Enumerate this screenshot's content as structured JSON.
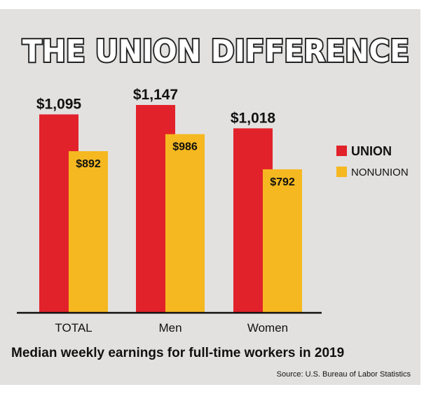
{
  "colors": {
    "union": "#e2222b",
    "nonunion": "#f5b820",
    "background": "#e2e1e0",
    "baseline": "#111111"
  },
  "chart_data": {
    "type": "bar",
    "title": "THE UNION DIFFERENCE",
    "subtitle": "Median weekly earnings for full-time workers in 2019",
    "source": "Source: U.S. Bureau of Labor Statistics",
    "categories": [
      "TOTAL",
      "Men",
      "Women"
    ],
    "series": [
      {
        "name": "UNION",
        "values": [
          1095,
          1147,
          1018
        ],
        "labels": [
          "$1,095",
          "$1,147",
          "$1,018"
        ]
      },
      {
        "name": "NONUNION",
        "values": [
          892,
          986,
          792
        ],
        "labels": [
          "$892",
          "$986",
          "$792"
        ]
      }
    ],
    "ylim": [
      0,
      1147
    ],
    "legend_position": "right",
    "grid": false,
    "xlabel": "",
    "ylabel": ""
  }
}
